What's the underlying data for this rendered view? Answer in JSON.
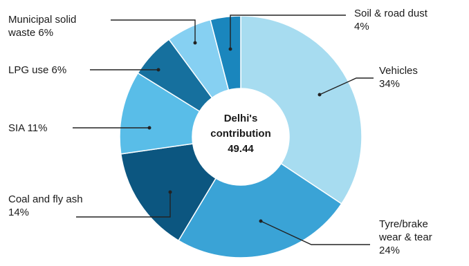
{
  "chart_data": {
    "type": "pie",
    "donut": true,
    "center_label": [
      "Delhi's",
      "contribution",
      "49.44"
    ],
    "slices": [
      {
        "label": "Vehicles",
        "label_lines": [
          "Vehicles",
          "34%"
        ],
        "value": 34,
        "color": "#a7dcf0"
      },
      {
        "label": "Tyre/brake wear & tear",
        "label_lines": [
          "Tyre/brake",
          "wear & tear",
          "24%"
        ],
        "value": 24,
        "color": "#3aa3d6"
      },
      {
        "label": "Coal and fly ash",
        "label_lines": [
          "Coal and fly ash",
          "14%"
        ],
        "value": 14,
        "color": "#0c5680"
      },
      {
        "label": "SIA",
        "label_lines": [
          "SIA 11%"
        ],
        "value": 11,
        "color": "#59bde8"
      },
      {
        "label": "LPG use",
        "label_lines": [
          "LPG use 6%"
        ],
        "value": 6,
        "color": "#16709e"
      },
      {
        "label": "Municipal solid waste",
        "label_lines": [
          "Municipal solid",
          "waste 6%"
        ],
        "value": 6,
        "color": "#86d0f2"
      },
      {
        "label": "Soil & road dust",
        "label_lines": [
          "Soil & road dust",
          "4%"
        ],
        "value": 4,
        "color": "#1a86bd"
      }
    ]
  }
}
